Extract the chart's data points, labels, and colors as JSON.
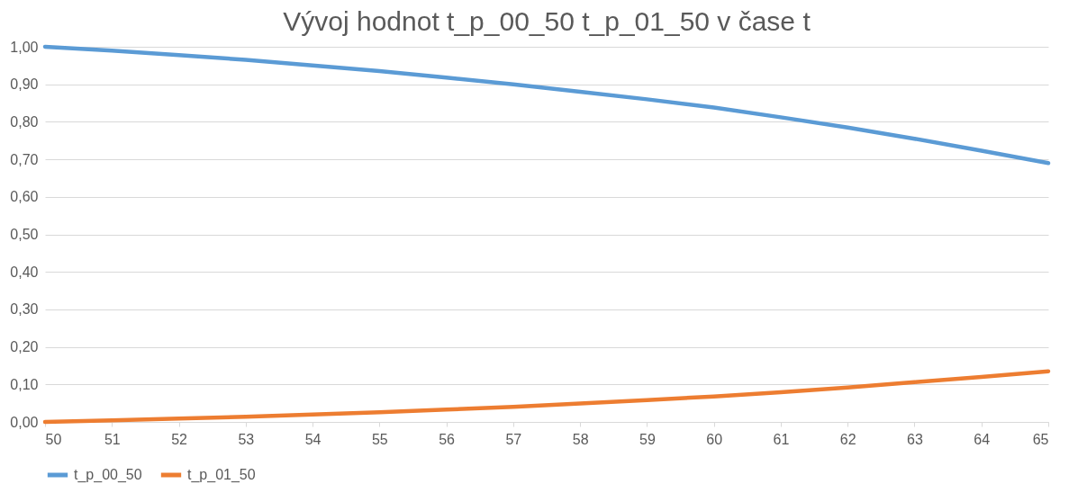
{
  "chart_data": {
    "type": "line",
    "title": "Vývoj hodnot t_p_00_50 t_p_01_50 v čase t",
    "categories": [
      "50",
      "51",
      "52",
      "53",
      "54",
      "55",
      "56",
      "57",
      "58",
      "59",
      "60",
      "61",
      "62",
      "63",
      "64",
      "65"
    ],
    "series": [
      {
        "name": "t_p_00_50",
        "color": "#5b9bd5",
        "values": [
          1.0,
          0.99,
          0.978,
          0.965,
          0.95,
          0.935,
          0.918,
          0.9,
          0.88,
          0.86,
          0.838,
          0.812,
          0.785,
          0.755,
          0.723,
          0.69
        ]
      },
      {
        "name": "t_p_01_50",
        "color": "#ed7d31",
        "values": [
          0.0,
          0.004,
          0.009,
          0.014,
          0.02,
          0.026,
          0.033,
          0.04,
          0.049,
          0.058,
          0.068,
          0.079,
          0.092,
          0.106,
          0.12,
          0.135
        ]
      }
    ],
    "ylim": [
      0,
      1
    ],
    "yticks": [
      {
        "value": 0,
        "label": "0,00"
      },
      {
        "value": 0.1,
        "label": "0,10"
      },
      {
        "value": 0.2,
        "label": "0,20"
      },
      {
        "value": 0.3,
        "label": "0,30"
      },
      {
        "value": 0.4,
        "label": "0,40"
      },
      {
        "value": 0.5,
        "label": "0,50"
      },
      {
        "value": 0.6,
        "label": "0,60"
      },
      {
        "value": 0.7,
        "label": "0,70"
      },
      {
        "value": 0.8,
        "label": "0,80"
      },
      {
        "value": 0.9,
        "label": "0,90"
      },
      {
        "value": 1,
        "label": "1,00"
      }
    ],
    "grid": "y",
    "legend": "bottom",
    "marker": "none",
    "line_style": "solid"
  }
}
